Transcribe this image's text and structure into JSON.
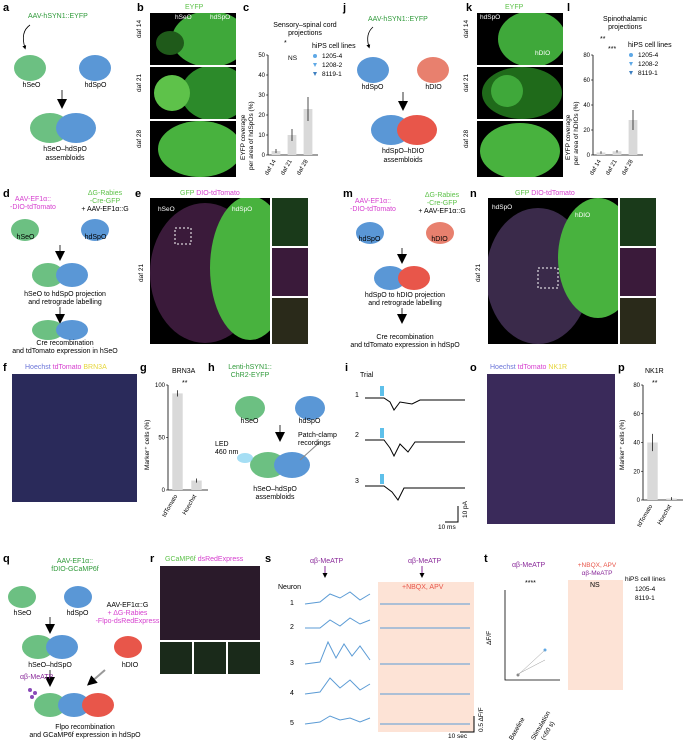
{
  "panels": {
    "a": "a",
    "b": "b",
    "c": "c",
    "d": "d",
    "e": "e",
    "f": "f",
    "g": "g",
    "h": "h",
    "i": "i",
    "j": "j",
    "k": "k",
    "l": "l",
    "m": "m",
    "n": "n",
    "o": "o",
    "p": "p",
    "q": "q",
    "r": "r",
    "s": "s",
    "t": "t"
  },
  "a": {
    "virus": "AAV-hSYN1::EYFP",
    "left": "hSeO",
    "right": "hdSpO",
    "result": "hSeO–hdSpO",
    "result2": "assembloids"
  },
  "b": {
    "title": "EYFP",
    "rows": [
      "daf 14",
      "daf 21",
      "daf 28"
    ],
    "left": "hSeO",
    "right": "hdSpO"
  },
  "c": {
    "title": "Sensory–spinal cord",
    "title2": "projections",
    "ylabel": "EYFP coverage",
    "ylabel2": "per area of hdSpOs (%)",
    "legend_title": "hiPS cell lines",
    "legend": [
      "1205-4",
      "1208-2",
      "8119-1"
    ],
    "sig1": "*",
    "sig2": "NS"
  },
  "j": {
    "virus": "AAV-hSYN1::EYFP",
    "left": "hdSpO",
    "right": "hDIO",
    "result": "hdSpO–hDIO",
    "result2": "assembloids"
  },
  "k": {
    "title": "EYFP",
    "rows": [
      "daf 14",
      "daf 21",
      "daf 28"
    ],
    "left": "hdSpO",
    "right": "hDIO"
  },
  "l": {
    "title": "Spinothalamic",
    "title2": "projections",
    "ylabel": "EYFP coverage",
    "ylabel2": "per area of hDIOs (%)",
    "legend_title": "hiPS cell lines",
    "legend": [
      "1205-4",
      "1208-2",
      "8119-1"
    ],
    "sig1": "**",
    "sig2": "***"
  },
  "d": {
    "virus1": "AAV-EF1α::",
    "virus1b": "-DIO-tdTomato",
    "virus2": "ΔG-Rabies",
    "virus2b": "-Cre-GFP",
    "virus2c": "+ AAV-EF1α::G",
    "left": "hSeO",
    "right": "hdSpO",
    "step1": "hSeO to hdSpO projection",
    "step1b": "and retrograde labelling",
    "step2": "Cre recombination",
    "step2b": "and tdTomato expression in hSeO"
  },
  "e": {
    "title_g": "GFP",
    "title_m": "DIO-tdTomato",
    "left": "hSeO",
    "right": "hdSpO",
    "day": "daf 21"
  },
  "m": {
    "virus1": "AAV-EF1α::",
    "virus1b": "-DIO-tdTomato",
    "virus2": "ΔG-Rabies",
    "virus2b": "-Cre-GFP",
    "virus2c": "+ AAV-EF1α::G",
    "left": "hdSpO",
    "right": "hDIO",
    "step1": "hdSpO to hDIO projection",
    "step1b": "and retrograde labelling",
    "step2": "Cre recombination",
    "step2b": "and tdTomato expression in hdSpO"
  },
  "n": {
    "title_g": "GFP",
    "title_m": "DIO-tdTomato",
    "left": "hdSpO",
    "right": "hDIO",
    "day": "daf 21"
  },
  "f": {
    "t_b": "Hoechst",
    "t_m": "tdTomato",
    "t_y": "BRN3A"
  },
  "g": {
    "title": "BRN3A",
    "ylabel": "Marker⁺ cells (%)",
    "cats": [
      "tdTomato",
      "Hoechst"
    ],
    "sig": "**"
  },
  "h": {
    "virus": "Lenti-hSYN1::",
    "virus2": "ChR2-EYFP",
    "left": "hSeO",
    "right": "hdSpO",
    "led": "LED",
    "led2": "460 nm",
    "patch": "Patch-clamp",
    "patch2": "recordings",
    "result": "hSeO–hdSpO",
    "result2": "assembloids"
  },
  "i": {
    "title": "Trial",
    "trials": [
      "1",
      "2",
      "3"
    ],
    "scale_y": "10 pA",
    "scale_x": "10 ms"
  },
  "o": {
    "t_b": "Hoechst",
    "t_m": "tdTomato",
    "t_y": "NK1R"
  },
  "p": {
    "title": "NK1R",
    "ylabel": "Marker⁺ cells (%)",
    "cats": [
      "tdTomato",
      "Hoechst"
    ],
    "sig": "**"
  },
  "q": {
    "virus1": "AAV-EF1α::",
    "virus1b": "fDIO-GCaMP6f",
    "left": "hSeO",
    "right": "hdSpO",
    "virus2": "AAV-EF1α::G",
    "virus2b": "+ ΔG-Rabies",
    "virus2c": "-Flpo-dsRedExpress",
    "mid": "hSeO–hdSpO",
    "third": "hDIO",
    "drug": "αβ-MeATP",
    "step": "Flpo recombination",
    "step2": "and GCaMP6f expression in hdSpO"
  },
  "r": {
    "t_g": "GCaMP6f",
    "t_m": "dsRedExpress"
  },
  "s": {
    "drug1": "αβ-MeATP",
    "drug2": "αβ-MeATP",
    "block": "+NBQX, APV",
    "neuron": "Neuron",
    "neurons": [
      "1",
      "2",
      "3",
      "4",
      "5"
    ],
    "scale_y": "0.5 ΔF/F",
    "scale_x": "10 sec"
  },
  "t": {
    "title1": "αβ-MeATP",
    "sig1": "****",
    "title2a": "+NBQX, APV",
    "title2b": "αβ-MeATP",
    "sig2": "NS",
    "ylabel": "ΔF/F",
    "cats": [
      "Baseline",
      "Stimulation",
      "(<60 s)"
    ],
    "legend_title": "hiPS cell lines",
    "legend": [
      "1205-4",
      "8119-1"
    ]
  },
  "chart_data": [
    {
      "type": "bar",
      "panel": "c",
      "categories": [
        "daf 14",
        "daf 21",
        "daf 28"
      ],
      "values": [
        2,
        10,
        23
      ],
      "errors": [
        1,
        3,
        6
      ],
      "ylim": [
        0,
        50
      ],
      "yticks": [
        0,
        10,
        20,
        30,
        40,
        50
      ],
      "ylabel": "EYFP coverage per area of hdSpOs (%)"
    },
    {
      "type": "bar",
      "panel": "l",
      "categories": [
        "daf 14",
        "daf 21",
        "daf 28"
      ],
      "values": [
        2,
        3,
        28
      ],
      "errors": [
        1,
        1,
        8
      ],
      "ylim": [
        0,
        80
      ],
      "yticks": [
        0,
        20,
        40,
        60,
        80
      ],
      "ylabel": "EYFP coverage per area of hDIOs (%)"
    },
    {
      "type": "bar",
      "panel": "g",
      "categories": [
        "tdTomato",
        "Hoechst"
      ],
      "values": [
        92,
        9
      ],
      "errors": [
        3,
        2
      ],
      "ylim": [
        0,
        100
      ],
      "yticks": [
        0,
        50,
        100
      ],
      "ylabel": "Marker⁺ cells (%)"
    },
    {
      "type": "bar",
      "panel": "p",
      "categories": [
        "tdTomato",
        "Hoechst"
      ],
      "values": [
        40,
        1
      ],
      "errors": [
        6,
        1
      ],
      "ylim": [
        0,
        80
      ],
      "yticks": [
        0,
        20,
        40,
        60,
        80
      ],
      "ylabel": "Marker⁺ cells (%)"
    }
  ],
  "colors": {
    "green": "#5ec24a",
    "magenta": "#d63fcf",
    "blue1": "#4a90d9",
    "red": "#e8564a",
    "bar": "#d9d9d9",
    "trace": "#5b9bd5",
    "block": "#fde3d6"
  }
}
